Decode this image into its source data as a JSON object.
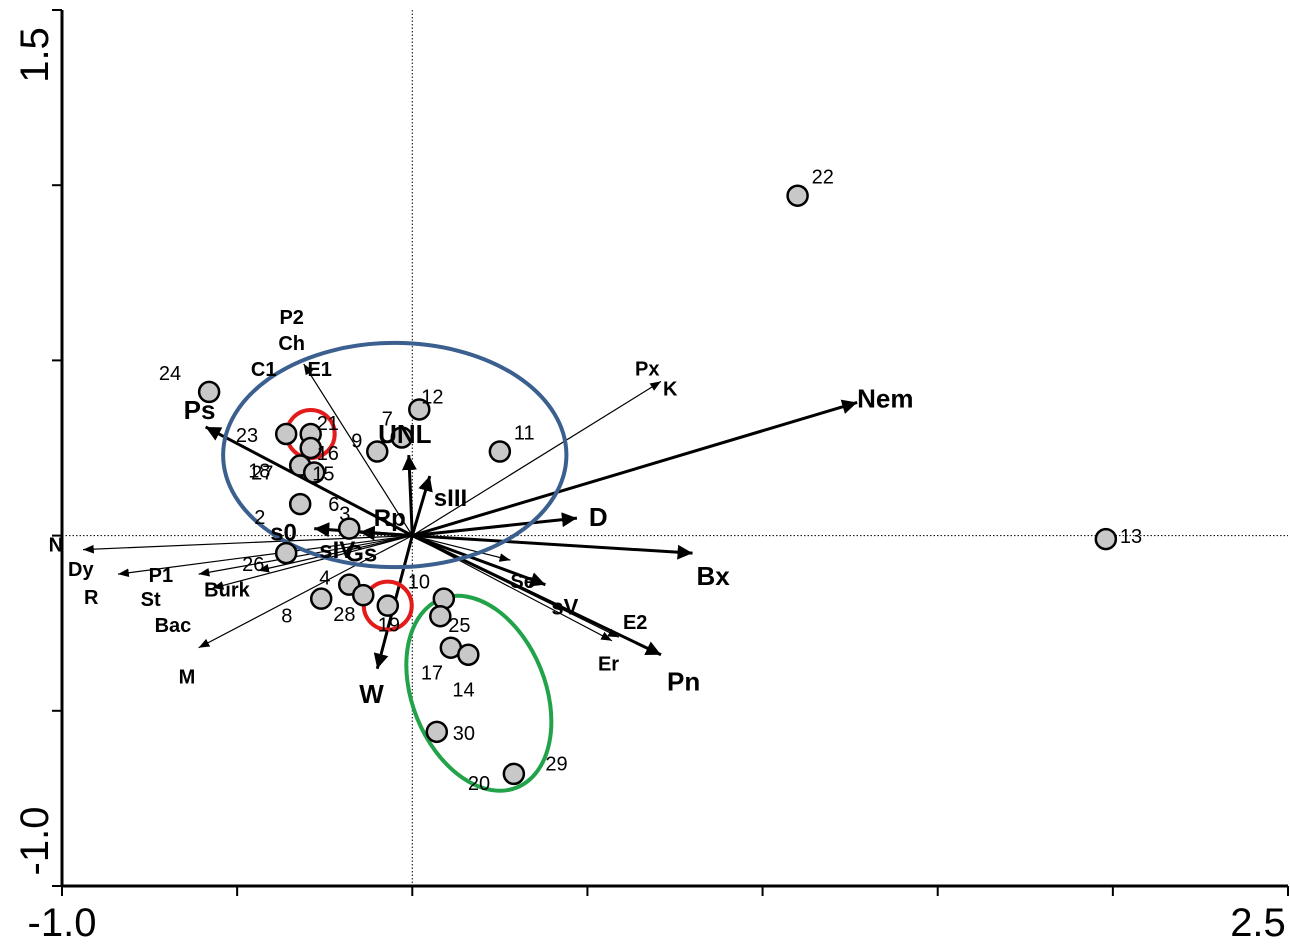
{
  "chart_data": {
    "type": "scatter",
    "subtype": "ordination-biplot",
    "title": "",
    "xlabel": "",
    "ylabel": "",
    "xlim": [
      -1.0,
      2.5
    ],
    "ylim": [
      -1.0,
      1.5
    ],
    "x_tick_labels": [
      "-1.0",
      "2.5"
    ],
    "y_tick_labels": [
      "1.5",
      "-1.0"
    ],
    "reference_lines": {
      "x": 0,
      "y": 0,
      "style": "dotted"
    },
    "arrows": [
      {
        "label": "Nem",
        "x": 1.27,
        "y": 0.38,
        "weight": "bold"
      },
      {
        "label": "Ps",
        "x": -0.59,
        "y": 0.31,
        "weight": "bold"
      },
      {
        "label": "UNL",
        "x": -0.01,
        "y": 0.23,
        "weight": "bold"
      },
      {
        "label": "sIII",
        "x": 0.05,
        "y": 0.17,
        "weight": "bold"
      },
      {
        "label": "D",
        "x": 0.47,
        "y": 0.05,
        "weight": "bold"
      },
      {
        "label": "Bx",
        "x": 0.8,
        "y": -0.05,
        "weight": "bold"
      },
      {
        "label": "sV",
        "x": 0.38,
        "y": -0.14,
        "weight": "bold"
      },
      {
        "label": "Pn",
        "x": 0.71,
        "y": -0.34,
        "weight": "bold"
      },
      {
        "label": "W",
        "x": -0.1,
        "y": -0.38,
        "weight": "bold"
      },
      {
        "label": "s0",
        "x": -0.28,
        "y": 0.02,
        "weight": "bold"
      },
      {
        "label": "Rp",
        "x": -0.15,
        "y": 0.01,
        "weight": "bold"
      },
      {
        "label": "P2 Ch C1 E1",
        "x": -0.31,
        "y": 0.49,
        "weight": "thin"
      },
      {
        "label": "Px K",
        "x": 0.71,
        "y": 0.44,
        "weight": "thin"
      },
      {
        "label": "N",
        "x": -0.94,
        "y": -0.04,
        "weight": "thin"
      },
      {
        "label": "Dy R",
        "x": -0.84,
        "y": -0.11,
        "weight": "thin"
      },
      {
        "label": "P1 St",
        "x": -0.61,
        "y": -0.11,
        "weight": "thin"
      },
      {
        "label": "Burk",
        "x": -0.44,
        "y": -0.1,
        "weight": "thin"
      },
      {
        "label": "Bac",
        "x": -0.57,
        "y": -0.15,
        "weight": "thin"
      },
      {
        "label": "M",
        "x": -0.61,
        "y": -0.32,
        "weight": "thin"
      },
      {
        "label": "Se",
        "x": 0.28,
        "y": -0.07,
        "weight": "thin"
      },
      {
        "label": "E2",
        "x": 0.59,
        "y": -0.29,
        "weight": "thin"
      },
      {
        "label": "Er",
        "x": 0.57,
        "y": -0.3,
        "weight": "thin"
      }
    ],
    "labels_only": [
      {
        "label": "sIV",
        "x": -0.22,
        "y": -0.03
      },
      {
        "label": "Gs",
        "x": -0.14,
        "y": -0.04
      }
    ],
    "points": [
      {
        "id": "22",
        "x": 1.1,
        "y": 0.97
      },
      {
        "id": "13",
        "x": 1.98,
        "y": -0.01
      },
      {
        "id": "24",
        "x": -0.58,
        "y": 0.41
      },
      {
        "id": "12",
        "x": 0.02,
        "y": 0.36
      },
      {
        "id": "11",
        "x": 0.25,
        "y": 0.24
      },
      {
        "id": "21",
        "x": -0.29,
        "y": 0.29
      },
      {
        "id": "23",
        "x": -0.36,
        "y": 0.29
      },
      {
        "id": "7",
        "x": -0.03,
        "y": 0.28
      },
      {
        "id": "9",
        "x": -0.1,
        "y": 0.24
      },
      {
        "id": "16",
        "x": -0.29,
        "y": 0.25
      },
      {
        "id": "18",
        "x": -0.32,
        "y": 0.2
      },
      {
        "id": "15",
        "x": -0.28,
        "y": 0.18
      },
      {
        "id": "2",
        "x": -0.32,
        "y": 0.09
      },
      {
        "id": "3",
        "x": -0.18,
        "y": 0.02
      },
      {
        "id": "26",
        "x": -0.36,
        "y": -0.05
      },
      {
        "id": "4",
        "x": -0.18,
        "y": -0.14
      },
      {
        "id": "28",
        "x": -0.14,
        "y": -0.17
      },
      {
        "id": "8",
        "x": -0.26,
        "y": -0.18
      },
      {
        "id": "19",
        "x": -0.07,
        "y": -0.2
      },
      {
        "id": "10",
        "x": 0.09,
        "y": -0.18
      },
      {
        "id": "25",
        "x": 0.08,
        "y": -0.23
      },
      {
        "id": "17",
        "x": 0.11,
        "y": -0.32
      },
      {
        "id": "14",
        "x": 0.16,
        "y": -0.34
      },
      {
        "id": "30",
        "x": 0.07,
        "y": -0.56
      },
      {
        "id": "20",
        "x": 0.29,
        "y": -0.68
      }
    ],
    "extra_point_labels": [
      {
        "label": "27",
        "x": -0.46,
        "y": 0.16
      },
      {
        "label": "6",
        "x": -0.24,
        "y": 0.07
      },
      {
        "label": "29",
        "x": 0.38,
        "y": -0.67
      }
    ],
    "ellipses": [
      {
        "color": "#3b5f8f",
        "cx": -0.05,
        "cy": 0.23,
        "rx": 0.49,
        "ry": 0.32
      },
      {
        "color": "#22a34a",
        "cx": 0.19,
        "cy": -0.45,
        "rx": 0.19,
        "ry": 0.29
      }
    ],
    "highlight_circles": [
      {
        "color": "#e31b1b",
        "target": "21"
      },
      {
        "color": "#e31b1b",
        "target": "19"
      }
    ]
  }
}
